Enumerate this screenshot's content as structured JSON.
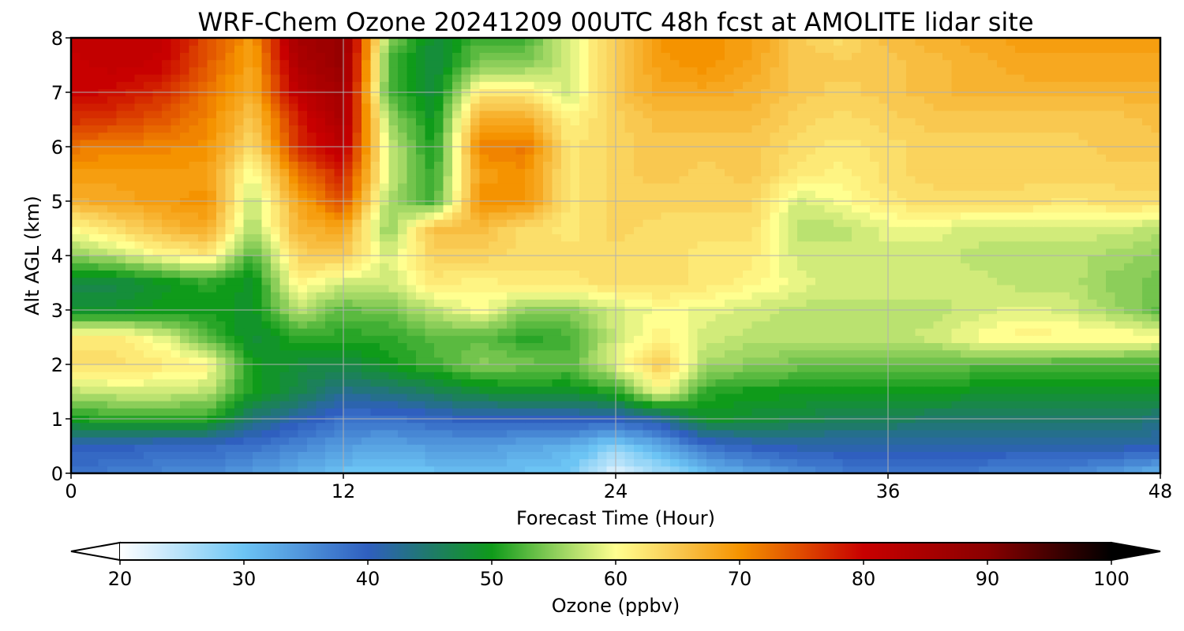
{
  "chart_data": {
    "type": "heatmap",
    "subtype": "filled-contour time-height cross-section",
    "title": "WRF-Chem Ozone  20241209 00UTC 48h fcst at AMOLITE lidar site",
    "xlabel": "Forecast Time (Hour)",
    "ylabel": "Alt AGL (km)",
    "xlim": [
      0,
      48
    ],
    "ylim": [
      0,
      8
    ],
    "xticks": [
      "0",
      "12",
      "24",
      "36",
      "48"
    ],
    "yticks": [
      "0",
      "1",
      "2",
      "3",
      "4",
      "5",
      "6",
      "7",
      "8"
    ],
    "grid": true,
    "colorbar": {
      "label": "Ozone  (ppbv)",
      "range": [
        20,
        100
      ],
      "ticks": [
        "20",
        "30",
        "40",
        "50",
        "60",
        "70",
        "80",
        "90",
        "100"
      ],
      "extend": "both",
      "orientation": "horizontal",
      "placement": "bottom",
      "colors": [
        {
          "v": 20,
          "c": "#ffffff"
        },
        {
          "v": 30,
          "c": "#6cc4f4"
        },
        {
          "v": 40,
          "c": "#2f5fbf"
        },
        {
          "v": 45,
          "c": "#1f7a6a"
        },
        {
          "v": 50,
          "c": "#0f9b1a"
        },
        {
          "v": 55,
          "c": "#8cce5a"
        },
        {
          "v": 60,
          "c": "#ffff90"
        },
        {
          "v": 65,
          "c": "#f9c850"
        },
        {
          "v": 70,
          "c": "#f59300"
        },
        {
          "v": 80,
          "c": "#c80000"
        },
        {
          "v": 90,
          "c": "#8a0000"
        },
        {
          "v": 100,
          "c": "#000000"
        }
      ]
    },
    "x": [
      0,
      2,
      4,
      6,
      8,
      10,
      12,
      14,
      16,
      18,
      20,
      22,
      24,
      26,
      28,
      30,
      32,
      34,
      36,
      38,
      40,
      42,
      44,
      46,
      48
    ],
    "y": [
      0,
      0.5,
      1,
      1.5,
      2,
      2.5,
      3,
      3.5,
      4,
      4.5,
      5,
      5.5,
      6,
      6.5,
      7,
      7.5,
      8
    ],
    "z": [
      [
        38,
        37,
        36,
        36,
        34,
        32,
        30,
        29,
        30,
        31,
        30,
        29,
        22,
        26,
        31,
        33,
        35,
        37,
        38,
        38,
        37,
        36,
        36,
        34,
        31
      ],
      [
        40,
        40,
        39,
        39,
        38,
        36,
        34,
        33,
        34,
        34,
        33,
        32,
        28,
        33,
        38,
        40,
        41,
        41,
        41,
        41,
        41,
        41,
        41,
        41,
        41
      ],
      [
        50,
        51,
        51,
        51,
        44,
        41,
        38,
        38,
        39,
        40,
        40,
        40,
        40,
        42,
        49,
        48,
        47,
        46,
        46,
        45,
        45,
        45,
        45,
        45,
        44
      ],
      [
        57,
        58,
        58,
        57,
        50,
        47,
        43,
        44,
        46,
        48,
        49,
        49,
        51,
        60,
        51,
        50,
        50,
        50,
        50,
        50,
        49,
        49,
        49,
        49,
        49
      ],
      [
        63,
        63,
        62,
        61,
        50,
        48,
        47,
        50,
        52,
        55,
        54,
        53,
        59,
        65,
        56,
        55,
        54,
        54,
        53,
        53,
        53,
        53,
        52,
        52,
        52
      ],
      [
        62,
        62,
        59,
        53,
        48,
        51,
        51,
        51,
        53,
        53,
        51,
        52,
        58,
        61,
        58,
        57,
        57,
        57,
        57,
        58,
        60,
        61,
        61,
        61,
        60
      ],
      [
        49,
        49,
        50,
        50,
        49,
        57,
        53,
        54,
        57,
        60,
        55,
        55,
        58,
        60,
        59,
        58,
        57,
        57,
        57,
        57,
        58,
        59,
        58,
        56,
        53
      ],
      [
        47,
        47,
        49,
        51,
        49,
        61,
        58,
        58,
        62,
        61,
        62,
        62,
        63,
        63,
        62,
        61,
        59,
        58,
        58,
        58,
        58,
        57,
        57,
        55,
        54
      ],
      [
        55,
        57,
        60,
        62,
        52,
        64,
        65,
        58,
        64,
        64,
        63,
        63,
        63,
        63,
        62,
        62,
        58,
        58,
        58,
        58,
        57,
        57,
        57,
        56,
        55
      ],
      [
        60,
        63,
        66,
        68,
        56,
        67,
        68,
        55,
        66,
        66,
        63,
        62,
        64,
        63,
        63,
        63,
        57,
        57,
        59,
        59,
        58,
        58,
        58,
        58,
        57
      ],
      [
        67,
        68,
        69,
        70,
        57,
        68,
        75,
        56,
        52,
        70,
        70,
        62,
        64,
        64,
        64,
        64,
        58,
        60,
        62,
        63,
        63,
        63,
        62,
        63,
        63
      ],
      [
        69,
        69,
        69,
        69,
        59,
        72,
        78,
        58,
        51,
        69,
        70,
        62,
        64,
        65,
        64,
        65,
        62,
        61,
        63,
        64,
        64,
        64,
        64,
        64,
        64
      ],
      [
        72,
        71,
        71,
        70,
        63,
        77,
        82,
        58,
        50,
        71,
        72,
        62,
        64,
        65,
        65,
        65,
        63,
        62,
        63,
        64,
        64,
        64,
        64,
        65,
        65
      ],
      [
        77,
        76,
        74,
        71,
        65,
        78,
        85,
        56,
        49,
        68,
        68,
        61,
        64,
        66,
        66,
        66,
        64,
        63,
        64,
        65,
        65,
        65,
        65,
        65,
        66
      ],
      [
        80,
        79,
        77,
        72,
        67,
        82,
        86,
        52,
        48,
        62,
        62,
        58,
        65,
        68,
        68,
        67,
        65,
        64,
        65,
        66,
        67,
        67,
        67,
        67,
        67
      ],
      [
        80,
        81,
        80,
        74,
        68,
        84,
        88,
        52,
        47,
        55,
        55,
        58,
        65,
        69,
        70,
        68,
        65,
        65,
        65,
        66,
        67,
        68,
        68,
        68,
        68
      ],
      [
        81,
        81,
        81,
        75,
        69,
        86,
        88,
        55,
        48,
        52,
        52,
        59,
        64,
        70,
        70,
        69,
        65,
        63,
        66,
        67,
        68,
        69,
        69,
        69,
        69
      ]
    ]
  }
}
